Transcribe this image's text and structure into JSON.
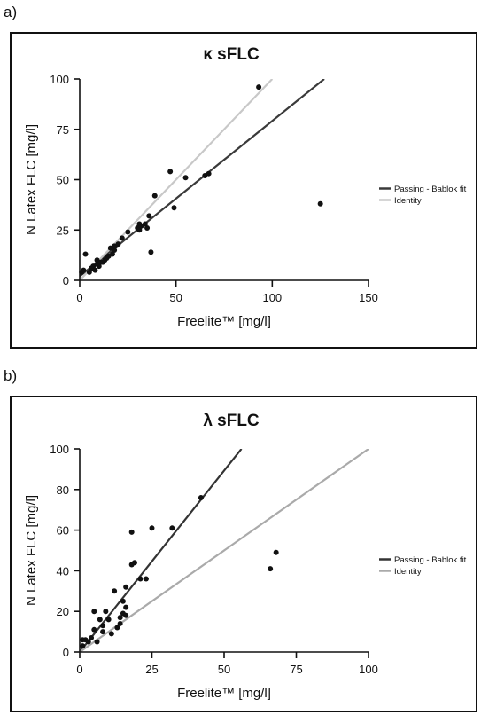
{
  "panels": [
    {
      "letter": "a)"
    },
    {
      "letter": "b)"
    }
  ],
  "chart_data": [
    {
      "type": "scatter",
      "title": "κ sFLC",
      "xlabel": "Freelite™ [mg/l]",
      "ylabel": "N Latex FLC [mg/l]",
      "xlim": [
        0,
        150
      ],
      "ylim": [
        0,
        100
      ],
      "xticks": [
        0,
        50,
        100,
        150
      ],
      "yticks": [
        0,
        25,
        50,
        75,
        100
      ],
      "grid": false,
      "legend_position": "right",
      "series": [
        {
          "name": "",
          "x": [
            1,
            2,
            3,
            5,
            6,
            7,
            8,
            9,
            9,
            10,
            11,
            12,
            13,
            14,
            15,
            16,
            17,
            18,
            18,
            20,
            22,
            25,
            30,
            31,
            31,
            32,
            34,
            35,
            36,
            37,
            39,
            47,
            49,
            55,
            65,
            67,
            93,
            125
          ],
          "y": [
            4,
            5,
            13,
            4,
            6,
            7,
            5,
            8,
            10,
            7,
            9,
            9,
            10,
            11,
            12,
            16,
            13,
            15,
            17,
            18,
            21,
            24,
            26,
            28,
            25,
            27,
            28,
            26,
            32,
            14,
            42,
            54,
            36,
            51,
            52,
            53,
            96,
            38
          ]
        }
      ],
      "lines": [
        {
          "name": "Passing - Bablok fit",
          "x": [
            0,
            127
          ],
          "y": [
            2,
            100
          ],
          "color": "#3a3a3a"
        },
        {
          "name": "Identity",
          "x": [
            0,
            100
          ],
          "y": [
            0,
            100
          ],
          "color": "#c8c8c8"
        }
      ]
    },
    {
      "type": "scatter",
      "title": "λ sFLC",
      "xlabel": "Freelite™ [mg/l]",
      "ylabel": "N Latex FLC [mg/l]",
      "xlim": [
        0,
        100
      ],
      "ylim": [
        0,
        100
      ],
      "xticks": [
        0,
        25,
        50,
        75,
        100
      ],
      "yticks": [
        0,
        20,
        40,
        60,
        80,
        100
      ],
      "grid": false,
      "legend_position": "right",
      "series": [
        {
          "name": "",
          "x": [
            1,
            1,
            2,
            3,
            4,
            5,
            5,
            6,
            7,
            8,
            8,
            9,
            10,
            11,
            12,
            13,
            14,
            14,
            15,
            15,
            16,
            16,
            16,
            18,
            18,
            19,
            21,
            23,
            25,
            32,
            42,
            66,
            68
          ],
          "y": [
            6,
            3,
            6,
            5,
            7,
            20,
            11,
            5,
            16,
            13,
            10,
            20,
            16,
            9,
            30,
            12,
            14,
            17,
            25,
            19,
            32,
            22,
            18,
            59,
            43,
            44,
            36,
            36,
            61,
            61,
            76,
            41,
            49
          ]
        }
      ],
      "lines": [
        {
          "name": "Passing - Bablok fit",
          "x": [
            0,
            56
          ],
          "y": [
            0,
            100
          ],
          "color": "#333333"
        },
        {
          "name": "Identity",
          "x": [
            0,
            100
          ],
          "y": [
            0,
            100
          ],
          "color": "#aaaaaa"
        }
      ]
    }
  ]
}
